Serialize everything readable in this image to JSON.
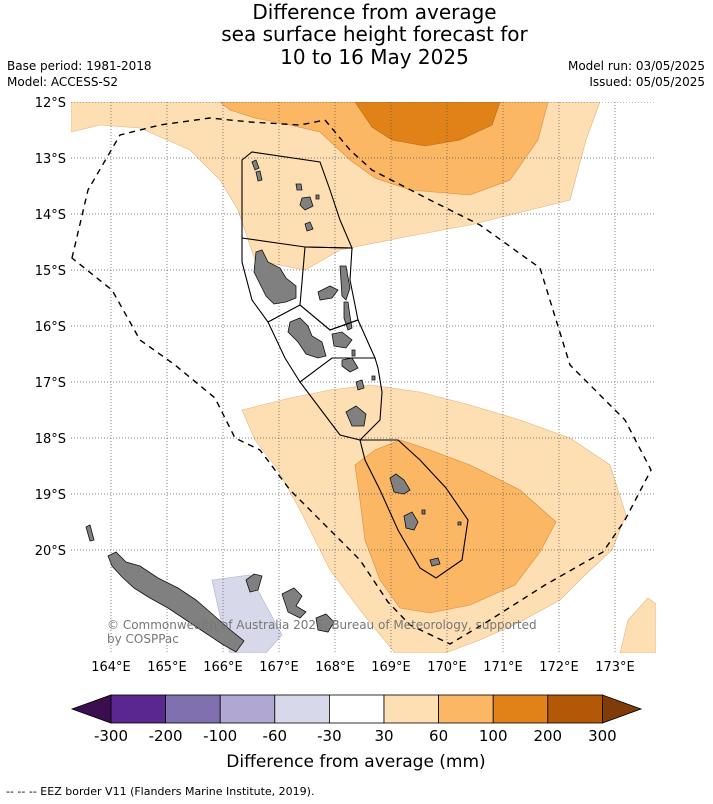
{
  "title": {
    "line1": "Difference from average",
    "line2": "sea surface height forecast for",
    "line3": "10 to 16 May 2025"
  },
  "meta_left": {
    "base_period": "Base period: 1981-2018",
    "model": "Model: ACCESS-S2"
  },
  "meta_right": {
    "model_run": "Model run: 03/05/2025",
    "issued": "Issued: 05/05/2025"
  },
  "map": {
    "lat_labels": [
      "12°S",
      "13°S",
      "14°S",
      "15°S",
      "16°S",
      "17°S",
      "18°S",
      "19°S",
      "20°S"
    ],
    "lon_labels": [
      "164°E",
      "165°E",
      "166°E",
      "167°E",
      "168°E",
      "169°E",
      "170°E",
      "171°E",
      "172°E",
      "173°E"
    ],
    "credit_line1": "© Commonwealth of Australia 2025, Bureau of Meteorology, supported",
    "credit_line2": "by COSPPac",
    "land_color": "#808080",
    "grid_style": "dotted"
  },
  "colorbar": {
    "title": "Difference from average (mm)",
    "ticks": [
      "-300",
      "-200",
      "-100",
      "-60",
      "-30",
      "30",
      "60",
      "100",
      "200",
      "300"
    ],
    "colors": [
      "#3b0f4f",
      "#5a2690",
      "#8070b0",
      "#b0a8d2",
      "#d8d8eb",
      "#ffffff",
      "#fddfb3",
      "#fbb763",
      "#e08217",
      "#b35807",
      "#7f3b08"
    ]
  },
  "footnote": "--  --  -- EEZ border V11 (Flanders Marine Institute, 2019)."
}
